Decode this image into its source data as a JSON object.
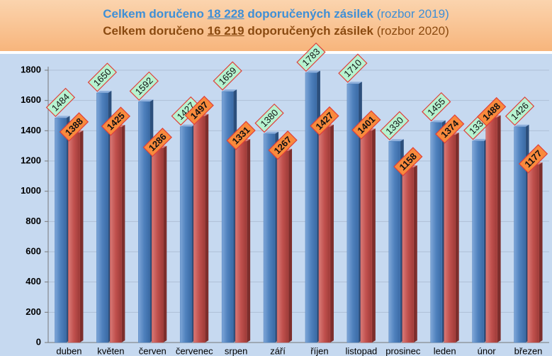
{
  "chart_data": {
    "type": "bar",
    "title": [
      "Celkem doručeno",
      "18 228",
      "doporučených zásilek",
      "(rozbor 2019)"
    ],
    "subtitle": [
      "Celkem doručeno",
      "16 219",
      "doporučených zásilek",
      "(rozbor 2020)"
    ],
    "categories": [
      "duben",
      "květen",
      "červen",
      "červenec",
      "srpen",
      "září",
      "říjen",
      "listopad",
      "prosinec",
      "leden",
      "únor",
      "březen"
    ],
    "series": [
      {
        "color": "#4f81bd",
        "values": [
          1484,
          1650,
          1592,
          1427,
          1659,
          1380,
          1783,
          1710,
          1330,
          1455,
          1332,
          1426
        ]
      },
      {
        "color": "#c0504d",
        "values": [
          1388,
          1425,
          1286,
          1497,
          1331,
          1267,
          1427,
          1401,
          1158,
          1374,
          1488,
          1177
        ]
      }
    ],
    "ylim": [
      0,
      1800
    ],
    "yticks": [
      0,
      200,
      400,
      600,
      800,
      1000,
      1200,
      1400,
      1600,
      1800
    ],
    "grid": true
  }
}
